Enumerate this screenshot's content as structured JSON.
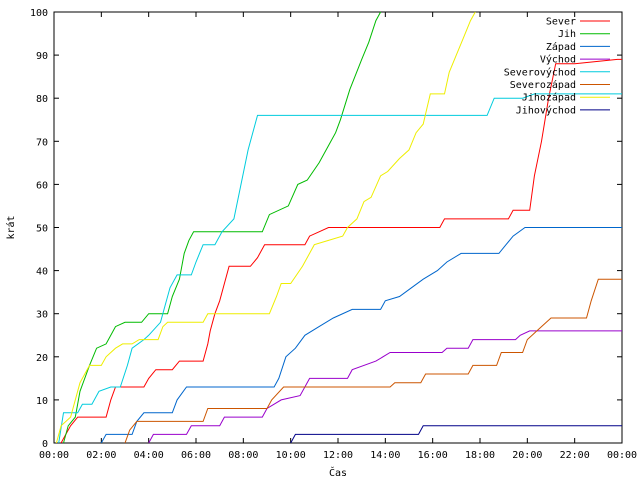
{
  "chart_data": {
    "type": "line",
    "title": "",
    "xlabel": "Čas",
    "ylabel": "krát",
    "xlim": [
      0,
      24
    ],
    "ylim": [
      0,
      100
    ],
    "grid": false,
    "legend_position": "top-right",
    "x_ticks": [
      "00:00",
      "02:00",
      "04:00",
      "06:00",
      "08:00",
      "10:00",
      "12:00",
      "14:00",
      "16:00",
      "18:00",
      "20:00",
      "22:00",
      "00:00"
    ],
    "y_ticks": [
      0,
      10,
      20,
      30,
      40,
      50,
      60,
      70,
      80,
      90,
      100
    ],
    "series": [
      {
        "name": "Sever",
        "color": "#ff0000",
        "points": [
          [
            0.3,
            0
          ],
          [
            0.5,
            2
          ],
          [
            0.7,
            4
          ],
          [
            1.0,
            6
          ],
          [
            2.2,
            6
          ],
          [
            2.4,
            10
          ],
          [
            2.6,
            13
          ],
          [
            3.8,
            13
          ],
          [
            4.0,
            15
          ],
          [
            4.3,
            17
          ],
          [
            5.0,
            17
          ],
          [
            5.3,
            19
          ],
          [
            6.3,
            19
          ],
          [
            6.5,
            23
          ],
          [
            6.6,
            26
          ],
          [
            6.8,
            30
          ],
          [
            7.0,
            33
          ],
          [
            7.2,
            37
          ],
          [
            7.4,
            41
          ],
          [
            8.3,
            41
          ],
          [
            8.6,
            43
          ],
          [
            8.9,
            46
          ],
          [
            10.6,
            46
          ],
          [
            10.8,
            48
          ],
          [
            11.2,
            49
          ],
          [
            11.6,
            50
          ],
          [
            16.3,
            50
          ],
          [
            16.5,
            52
          ],
          [
            19.2,
            52
          ],
          [
            19.4,
            54
          ],
          [
            20.1,
            54
          ],
          [
            20.3,
            62
          ],
          [
            20.6,
            70
          ],
          [
            20.9,
            80
          ],
          [
            21.2,
            88
          ],
          [
            22.0,
            88
          ],
          [
            23.8,
            89
          ],
          [
            24,
            89
          ]
        ]
      },
      {
        "name": "Jih",
        "color": "#00bb00",
        "points": [
          [
            0.4,
            0
          ],
          [
            0.6,
            4
          ],
          [
            0.9,
            6
          ],
          [
            1.1,
            12
          ],
          [
            1.5,
            18
          ],
          [
            1.8,
            22
          ],
          [
            2.2,
            23
          ],
          [
            2.6,
            27
          ],
          [
            3.0,
            28
          ],
          [
            3.7,
            28
          ],
          [
            4.0,
            30
          ],
          [
            4.8,
            30
          ],
          [
            5.0,
            34
          ],
          [
            5.3,
            38
          ],
          [
            5.5,
            44
          ],
          [
            5.7,
            47
          ],
          [
            5.9,
            49
          ],
          [
            8.8,
            49
          ],
          [
            9.1,
            53
          ],
          [
            9.9,
            55
          ],
          [
            10.3,
            60
          ],
          [
            10.7,
            61
          ],
          [
            11.2,
            65
          ],
          [
            11.6,
            69
          ],
          [
            11.9,
            72
          ],
          [
            12.1,
            75
          ],
          [
            12.5,
            82
          ],
          [
            13.0,
            89
          ],
          [
            13.3,
            93
          ],
          [
            13.6,
            98
          ],
          [
            13.8,
            100
          ]
        ]
      },
      {
        "name": "Západ",
        "color": "#0066cc",
        "points": [
          [
            2.0,
            0
          ],
          [
            2.2,
            2
          ],
          [
            3.3,
            2
          ],
          [
            3.5,
            5
          ],
          [
            3.8,
            7
          ],
          [
            5.0,
            7
          ],
          [
            5.2,
            10
          ],
          [
            5.6,
            13
          ],
          [
            9.3,
            13
          ],
          [
            9.5,
            15
          ],
          [
            9.8,
            20
          ],
          [
            10.2,
            22
          ],
          [
            10.6,
            25
          ],
          [
            11.2,
            27
          ],
          [
            11.8,
            29
          ],
          [
            12.6,
            31
          ],
          [
            13.8,
            31
          ],
          [
            14.0,
            33
          ],
          [
            14.6,
            34
          ],
          [
            15.1,
            36
          ],
          [
            15.6,
            38
          ],
          [
            16.2,
            40
          ],
          [
            16.6,
            42
          ],
          [
            17.2,
            44
          ],
          [
            18.8,
            44
          ],
          [
            19.1,
            46
          ],
          [
            19.4,
            48
          ],
          [
            19.9,
            50
          ],
          [
            24,
            50
          ]
        ]
      },
      {
        "name": "Východ",
        "color": "#9900cc",
        "points": [
          [
            4.0,
            0
          ],
          [
            4.2,
            2
          ],
          [
            5.6,
            2
          ],
          [
            5.8,
            4
          ],
          [
            7.0,
            4
          ],
          [
            7.2,
            6
          ],
          [
            8.8,
            6
          ],
          [
            9.0,
            8
          ],
          [
            9.6,
            10
          ],
          [
            10.4,
            11
          ],
          [
            10.8,
            15
          ],
          [
            12.4,
            15
          ],
          [
            12.6,
            17
          ],
          [
            13.6,
            19
          ],
          [
            14.2,
            21
          ],
          [
            16.4,
            21
          ],
          [
            16.6,
            22
          ],
          [
            17.5,
            22
          ],
          [
            17.7,
            24
          ],
          [
            19.5,
            24
          ],
          [
            19.7,
            25
          ],
          [
            20.1,
            26
          ],
          [
            24,
            26
          ]
        ]
      },
      {
        "name": "Severovýchod",
        "color": "#00ccdd",
        "points": [
          [
            0.2,
            0
          ],
          [
            0.4,
            7
          ],
          [
            1.0,
            7
          ],
          [
            1.2,
            9
          ],
          [
            1.6,
            9
          ],
          [
            1.9,
            12
          ],
          [
            2.4,
            13
          ],
          [
            2.8,
            13
          ],
          [
            3.1,
            18
          ],
          [
            3.3,
            22
          ],
          [
            3.8,
            24
          ],
          [
            4.0,
            25
          ],
          [
            4.5,
            28
          ],
          [
            4.7,
            32
          ],
          [
            4.9,
            36
          ],
          [
            5.2,
            39
          ],
          [
            5.8,
            39
          ],
          [
            6.0,
            42
          ],
          [
            6.3,
            46
          ],
          [
            6.8,
            46
          ],
          [
            7.1,
            49
          ],
          [
            7.6,
            52
          ],
          [
            7.9,
            60
          ],
          [
            8.2,
            68
          ],
          [
            8.6,
            76
          ],
          [
            18.3,
            76
          ],
          [
            18.6,
            80
          ],
          [
            19.8,
            80
          ],
          [
            20.3,
            81
          ],
          [
            24,
            81
          ]
        ]
      },
      {
        "name": "Severozápad",
        "color": "#cc5500",
        "points": [
          [
            3.0,
            0
          ],
          [
            3.2,
            3
          ],
          [
            3.5,
            5
          ],
          [
            6.3,
            5
          ],
          [
            6.5,
            8
          ],
          [
            9.0,
            8
          ],
          [
            9.2,
            10
          ],
          [
            9.7,
            13
          ],
          [
            14.2,
            13
          ],
          [
            14.4,
            14
          ],
          [
            15.5,
            14
          ],
          [
            15.7,
            16
          ],
          [
            17.5,
            16
          ],
          [
            17.7,
            18
          ],
          [
            18.7,
            18
          ],
          [
            18.9,
            21
          ],
          [
            19.8,
            21
          ],
          [
            20.0,
            24
          ],
          [
            20.6,
            27
          ],
          [
            21.0,
            29
          ],
          [
            22.5,
            29
          ],
          [
            22.7,
            33
          ],
          [
            23.0,
            38
          ],
          [
            24,
            38
          ]
        ]
      },
      {
        "name": "Jihozápad",
        "color": "#eeee00",
        "points": [
          [
            0.1,
            0
          ],
          [
            0.3,
            4
          ],
          [
            0.7,
            6
          ],
          [
            1.1,
            14
          ],
          [
            1.5,
            18
          ],
          [
            2.0,
            18
          ],
          [
            2.2,
            20
          ],
          [
            2.6,
            22
          ],
          [
            2.9,
            23
          ],
          [
            3.3,
            23
          ],
          [
            3.6,
            24
          ],
          [
            4.4,
            24
          ],
          [
            4.6,
            27
          ],
          [
            4.8,
            28
          ],
          [
            6.3,
            28
          ],
          [
            6.5,
            30
          ],
          [
            9.1,
            30
          ],
          [
            9.4,
            34
          ],
          [
            9.6,
            37
          ],
          [
            10.0,
            37
          ],
          [
            10.5,
            41
          ],
          [
            11.0,
            46
          ],
          [
            11.6,
            47
          ],
          [
            12.2,
            48
          ],
          [
            12.4,
            50
          ],
          [
            12.8,
            52
          ],
          [
            13.1,
            56
          ],
          [
            13.4,
            57
          ],
          [
            13.8,
            62
          ],
          [
            14.1,
            63
          ],
          [
            14.6,
            66
          ],
          [
            15.0,
            68
          ],
          [
            15.3,
            72
          ],
          [
            15.6,
            74
          ],
          [
            15.9,
            81
          ],
          [
            16.5,
            81
          ],
          [
            16.7,
            86
          ],
          [
            17.0,
            90
          ],
          [
            17.3,
            94
          ],
          [
            17.6,
            98
          ],
          [
            17.8,
            100
          ]
        ]
      },
      {
        "name": "Jihovýchod",
        "color": "#000088",
        "points": [
          [
            10.0,
            0
          ],
          [
            10.2,
            2
          ],
          [
            15.4,
            2
          ],
          [
            15.6,
            4
          ],
          [
            24,
            4
          ]
        ]
      }
    ]
  }
}
